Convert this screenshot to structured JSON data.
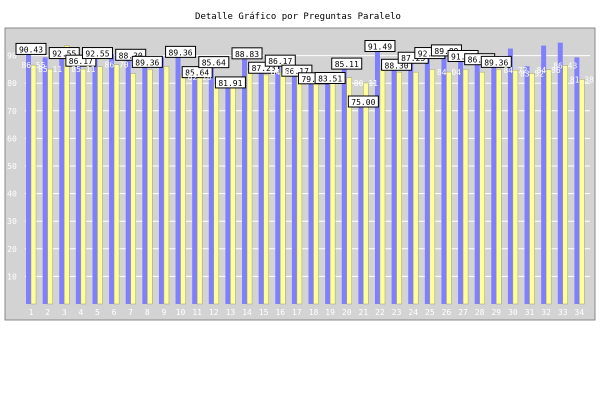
{
  "title": "Detalle Gráfico por Preguntas Paralelo",
  "colors": {
    "page_background": "#ffffff",
    "plot_background": "#d3d3d3",
    "series_a": "#8080ff",
    "series_b": "#ffff99",
    "grid": "#ffffff",
    "label_box": "#ffffff",
    "label_border": "#000000"
  },
  "chart_data": {
    "type": "bar",
    "title": "Detalle Gráfico por Preguntas Paralelo",
    "xlabel": "",
    "ylabel": "",
    "ylim": [
      0,
      100
    ],
    "yticks": [
      10,
      20,
      30,
      40,
      50,
      60,
      70,
      80,
      90
    ],
    "grid": true,
    "categories": [
      "1",
      "2",
      "3",
      "4",
      "5",
      "6",
      "7",
      "8",
      "9",
      "10",
      "11",
      "12",
      "13",
      "14",
      "15",
      "16",
      "17",
      "18",
      "19",
      "20",
      "21",
      "22",
      "23",
      "24",
      "25",
      "26",
      "27",
      "28",
      "29",
      "30",
      "31",
      "32",
      "33",
      "34"
    ],
    "series": [
      {
        "name": "",
        "color": "#8080ff",
        "values": [
          90.43,
          89.36,
          92.55,
          86.17,
          92.55,
          90.43,
          88.3,
          89.36,
          89.36,
          89.36,
          85.64,
          85.64,
          81.91,
          88.83,
          87.23,
          86.17,
          86.17,
          79.79,
          83.51,
          85.11,
          75.0,
          91.49,
          88.3,
          87.23,
          92.55,
          89.89,
          91.49,
          86.7,
          89.36,
          92.55,
          86.17,
          93.62,
          94.68,
          89.36
        ],
        "labels": [
          "90.43",
          "",
          "92.55",
          "86.17",
          "92.55",
          "",
          "88.30",
          "89.36",
          "",
          "89.36",
          "85.64",
          "85.64",
          "81.91",
          "88.83",
          "87.23",
          "86.17",
          "86.17",
          "79.79",
          "83.51",
          "85.11",
          "75.00",
          "91.49",
          "88.30",
          "87.23",
          "92.55",
          "89.89",
          "91.49",
          "86.70",
          "89.36",
          "",
          "",
          "",
          "",
          ""
        ]
      },
      {
        "name": "",
        "color": "#ffff99",
        "values": [
          86.55,
          85.11,
          93.62,
          85.11,
          86.0,
          86.7,
          83.51,
          85.0,
          86.0,
          83.0,
          82.28,
          80.0,
          82.0,
          85.0,
          83.0,
          84.03,
          85.11,
          83.0,
          84.0,
          82.0,
          80.11,
          85.0,
          84.0,
          84.0,
          85.0,
          84.04,
          85.0,
          84.0,
          85.0,
          84.72,
          83.52,
          84.86,
          86.43,
          81.38
        ],
        "labels": [
          "86.55",
          "85.11",
          "",
          "85.11",
          "",
          "86.70",
          "",
          "",
          "",
          "",
          "82.28",
          "",
          "",
          "",
          "",
          "84.03",
          "",
          "",
          "",
          "",
          "80.11",
          "",
          "",
          "",
          "",
          "84.04",
          "",
          "",
          "",
          "84.72",
          "83.52",
          "84.86",
          "86.43",
          "81.38"
        ]
      }
    ]
  }
}
